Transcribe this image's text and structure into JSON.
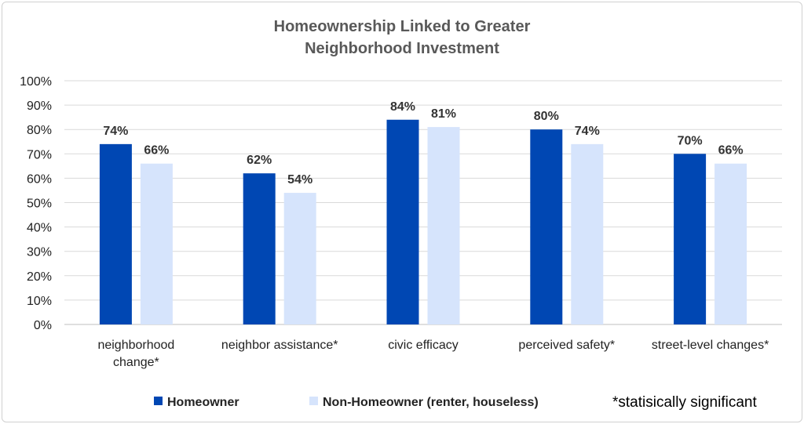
{
  "chart_data": {
    "type": "bar",
    "title_lines": [
      "Homeownership Linked to Greater",
      "Neighborhood Investment"
    ],
    "categories": [
      [
        "neighborhood",
        "change*"
      ],
      [
        "neighbor assistance*"
      ],
      [
        "civic efficacy"
      ],
      [
        "perceived safety*"
      ],
      [
        "street-level changes*"
      ]
    ],
    "series": [
      {
        "name": "Homeowner",
        "color": "#0047b3",
        "values": [
          74,
          62,
          84,
          80,
          70
        ]
      },
      {
        "name": "Non-Homeowner (renter, houseless)",
        "color": "#d6e4fc",
        "values": [
          66,
          54,
          81,
          74,
          66
        ]
      }
    ],
    "data_labels": [
      [
        "74%",
        "62%",
        "84%",
        "80%",
        "70%"
      ],
      [
        "66%",
        "54%",
        "81%",
        "74%",
        "66%"
      ]
    ],
    "y_ticks": [
      "0%",
      "10%",
      "20%",
      "30%",
      "40%",
      "50%",
      "60%",
      "70%",
      "80%",
      "90%",
      "100%"
    ],
    "ylim": [
      0,
      100
    ],
    "grid": true,
    "legend": "bottom"
  },
  "footnote": "*statisically significant"
}
